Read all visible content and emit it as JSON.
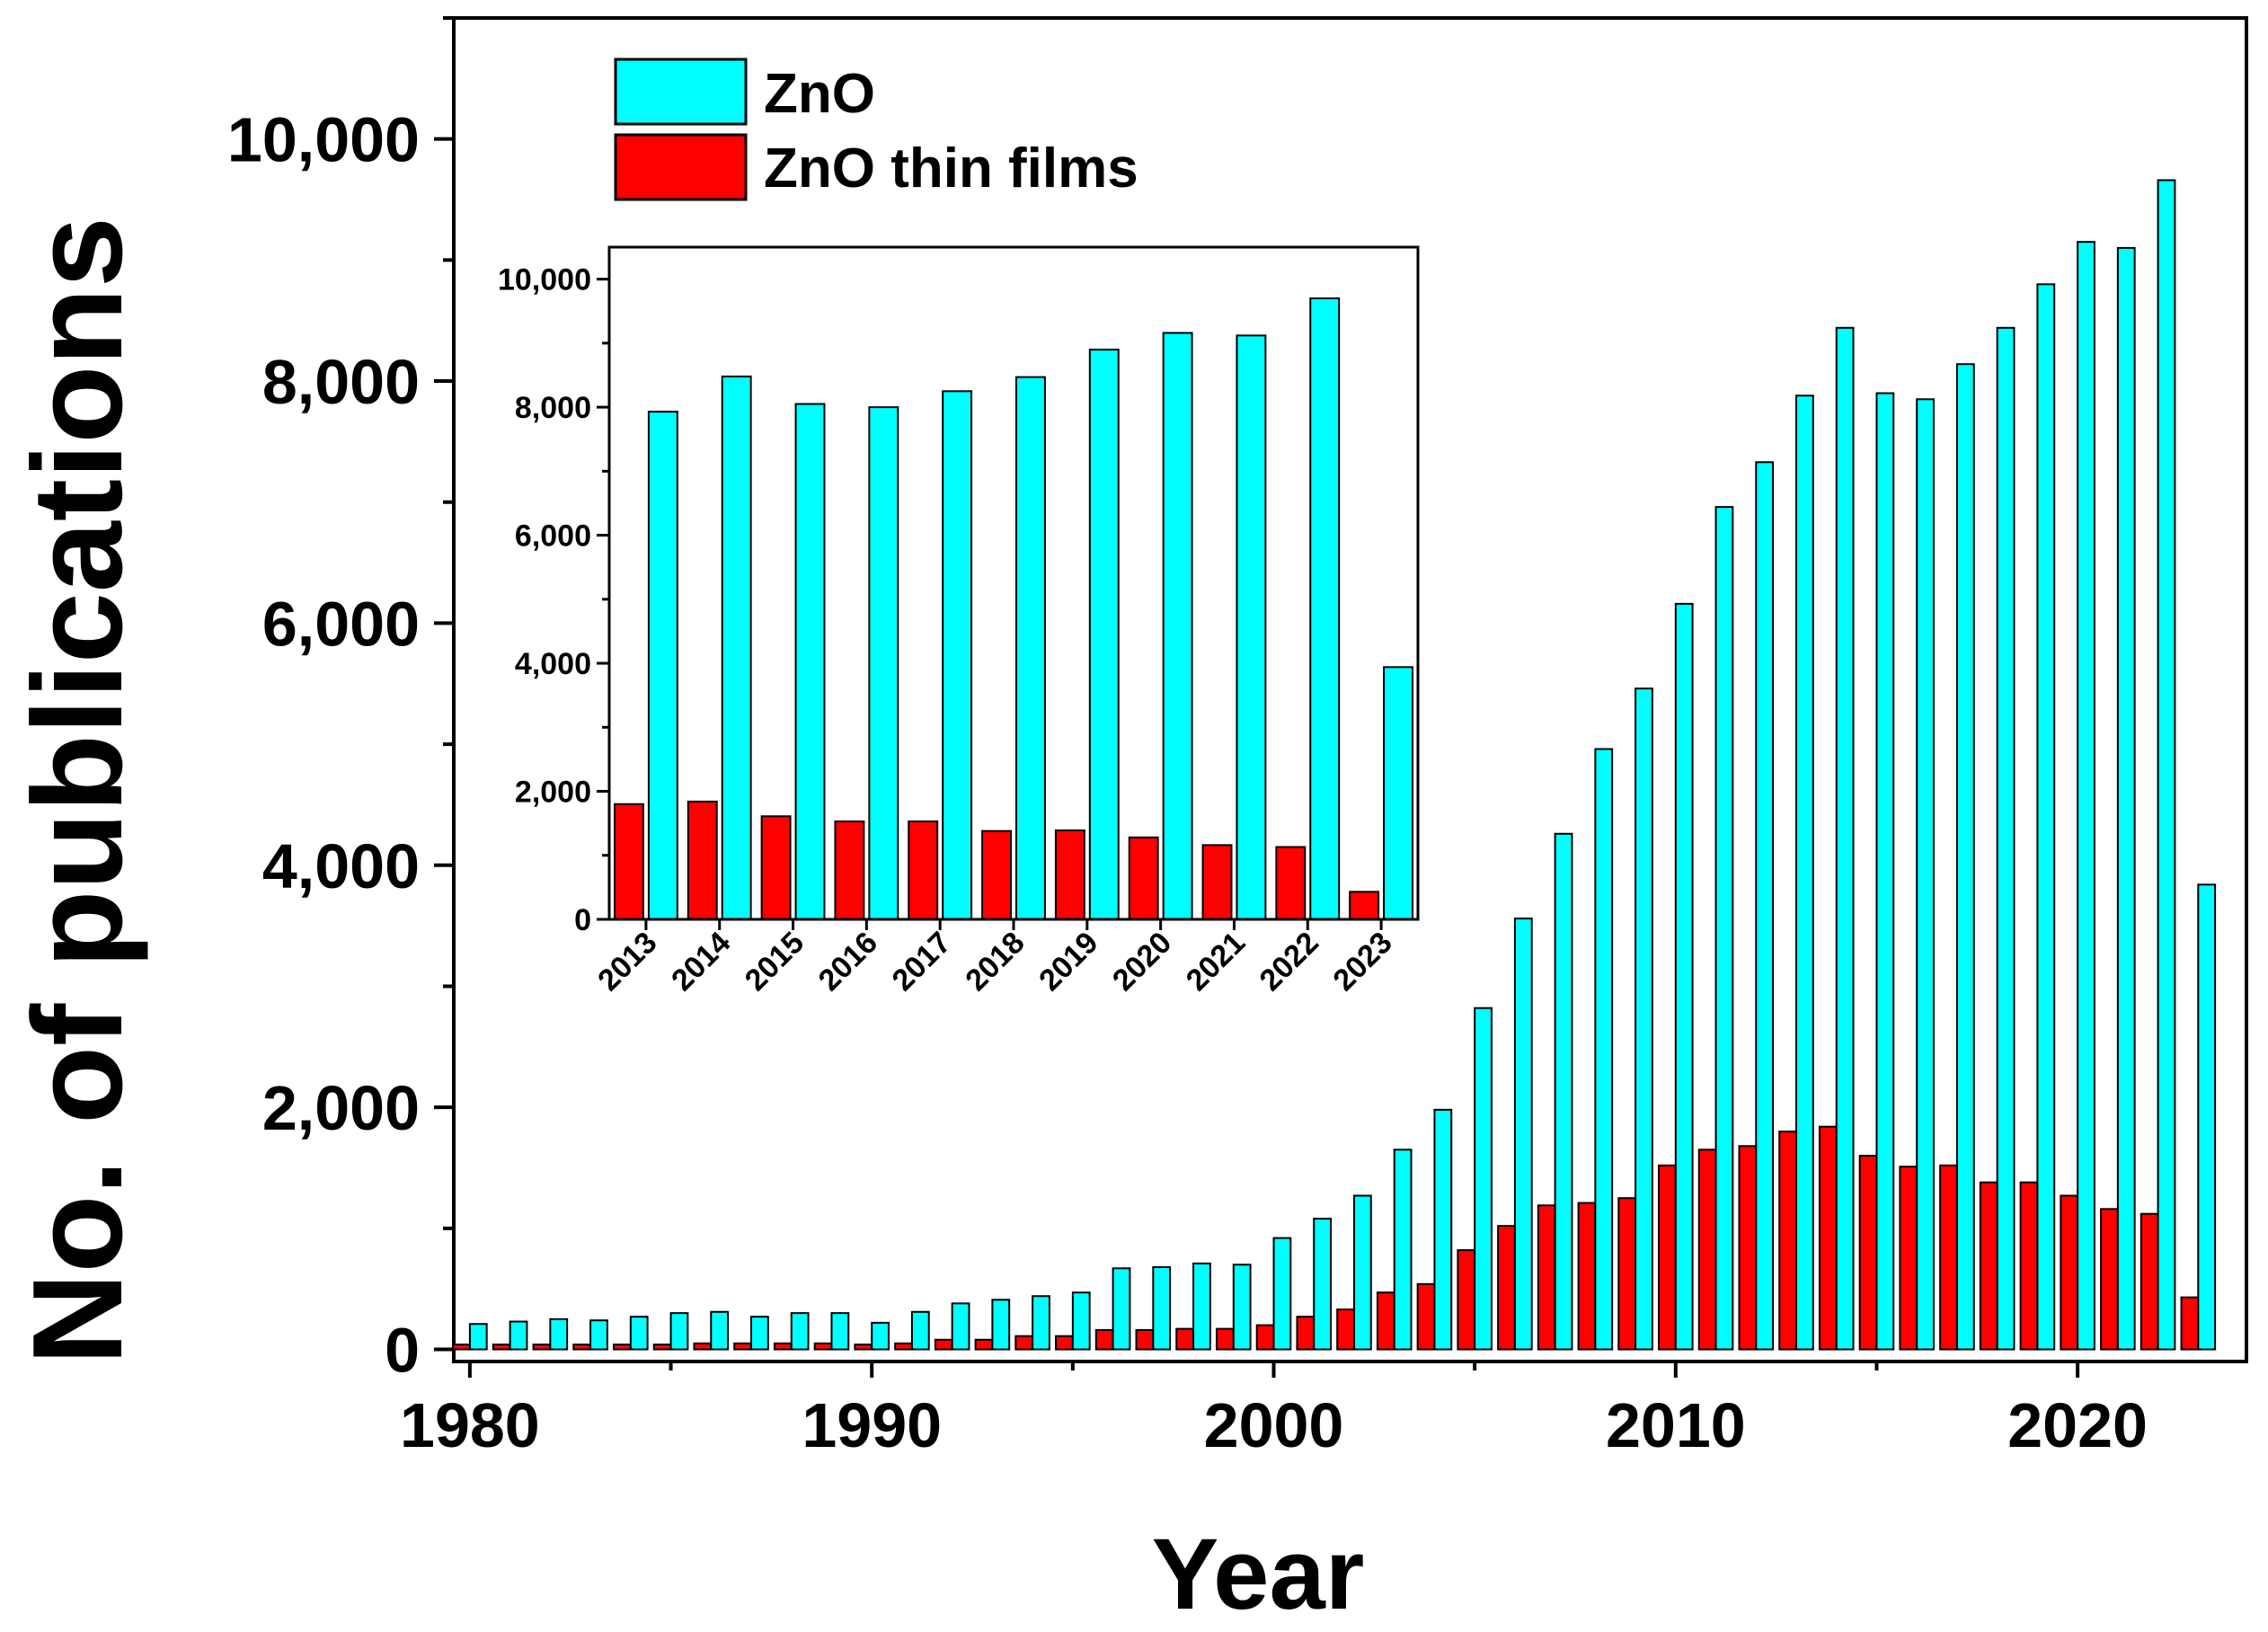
{
  "chart_data": [
    {
      "type": "bar",
      "role": "main",
      "title": "",
      "xlabel": "Year",
      "ylabel": "No. of publications",
      "xlim": [
        1979.6,
        2024.2
      ],
      "ylim": [
        -100,
        11000
      ],
      "x_ticks": [
        1980,
        1990,
        2000,
        2010,
        2020
      ],
      "x_tick_labels": [
        "1980",
        "1990",
        "2000",
        "2010",
        "2020"
      ],
      "y_ticks": [
        0,
        2000,
        4000,
        6000,
        8000,
        10000
      ],
      "y_tick_labels": [
        "0",
        "2,000",
        "4,000",
        "6,000",
        "8,000",
        "10,000"
      ],
      "legend": {
        "position": "top-left",
        "entries": [
          "ZnO",
          "ZnO thin films"
        ]
      },
      "x": [
        1980,
        1981,
        1982,
        1983,
        1984,
        1985,
        1986,
        1987,
        1988,
        1989,
        1990,
        1991,
        1992,
        1993,
        1994,
        1995,
        1996,
        1997,
        1998,
        1999,
        2000,
        2001,
        2002,
        2003,
        2004,
        2005,
        2006,
        2007,
        2008,
        2009,
        2010,
        2011,
        2012,
        2013,
        2014,
        2015,
        2016,
        2017,
        2018,
        2019,
        2020,
        2021,
        2022,
        2023
      ],
      "series": [
        {
          "name": "ZnO",
          "color": "#00FFFF",
          "values": [
            210,
            230,
            250,
            240,
            270,
            300,
            310,
            270,
            300,
            300,
            220,
            310,
            380,
            410,
            440,
            470,
            670,
            680,
            710,
            700,
            920,
            1080,
            1270,
            1650,
            1980,
            2820,
            3560,
            4260,
            4960,
            5460,
            6160,
            6960,
            7330,
            7880,
            8440,
            7900,
            7850,
            8140,
            8440,
            8800,
            9150,
            9100,
            9660,
            3840
          ]
        },
        {
          "name": "ZnO thin films",
          "color": "#FF0000",
          "values": [
            40,
            40,
            40,
            40,
            40,
            40,
            50,
            50,
            50,
            50,
            40,
            50,
            80,
            80,
            110,
            110,
            160,
            160,
            170,
            170,
            200,
            270,
            330,
            470,
            540,
            820,
            1020,
            1190,
            1210,
            1250,
            1520,
            1650,
            1680,
            1800,
            1840,
            1600,
            1510,
            1520,
            1380,
            1380,
            1270,
            1160,
            1120,
            430
          ]
        }
      ]
    },
    {
      "type": "bar",
      "role": "inset",
      "title": "",
      "xlabel": "",
      "ylabel": "",
      "ylim": [
        0,
        10500
      ],
      "categories": [
        "2013",
        "2014",
        "2015",
        "2016",
        "2017",
        "2018",
        "2019",
        "2020",
        "2021",
        "2022",
        "2023"
      ],
      "y_ticks": [
        0,
        2000,
        4000,
        6000,
        8000,
        10000
      ],
      "y_tick_labels": [
        "0",
        "2,000",
        "4,000",
        "6,000",
        "8,000",
        "10,000"
      ],
      "series": [
        {
          "name": "ZnO thin films",
          "color": "#FF0000",
          "values": [
            1800,
            1840,
            1610,
            1530,
            1530,
            1380,
            1390,
            1280,
            1160,
            1130,
            430
          ]
        },
        {
          "name": "ZnO",
          "color": "#00FFFF",
          "values": [
            7930,
            8480,
            8050,
            8000,
            8250,
            8470,
            8900,
            9160,
            9120,
            9700,
            3940
          ]
        }
      ]
    }
  ]
}
